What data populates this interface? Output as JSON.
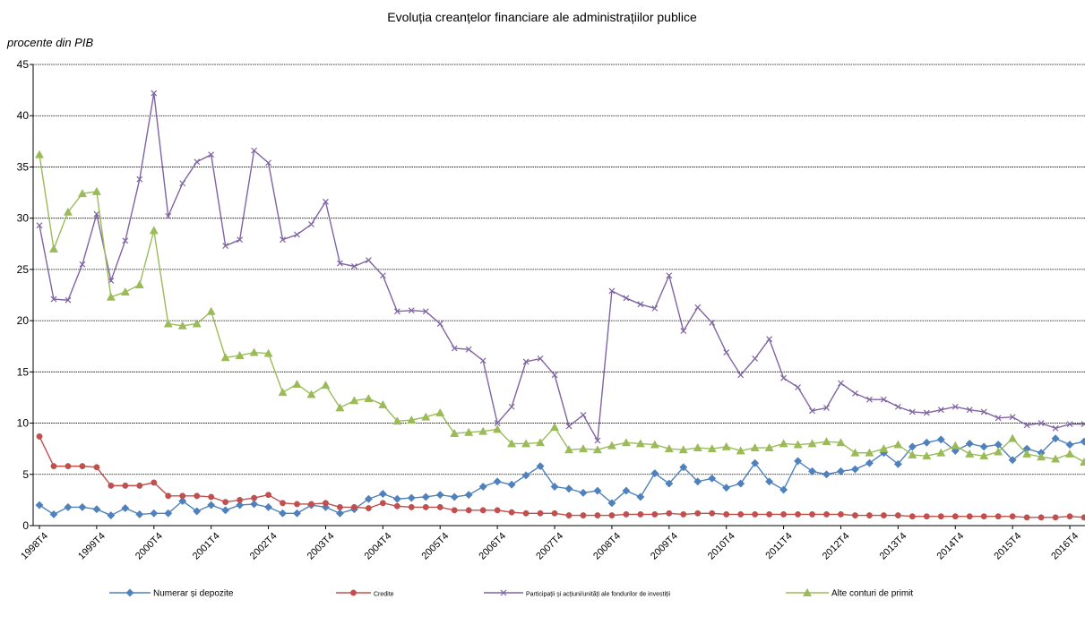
{
  "chart_data": {
    "type": "line",
    "title": "Evoluția creanțelor financiare ale administrațiilor publice",
    "ylabel": "procente din PIB",
    "xlabel": "",
    "ylim": [
      0,
      45
    ],
    "yticks": [
      0,
      5,
      10,
      15,
      20,
      25,
      30,
      35,
      40,
      45
    ],
    "grid": true,
    "legend_position": "bottom",
    "x_tick_labels": [
      "1998T4",
      "1999T4",
      "2000T4",
      "2001T4",
      "2002T4",
      "2003T4",
      "2004T4",
      "2005T4",
      "2006T4",
      "2007T4",
      "2008T4",
      "2009T4",
      "2010T4",
      "2011T4",
      "2012T4",
      "2013T4",
      "2014T4",
      "2015T4",
      "2016T4"
    ],
    "x_tick_label_index": [
      0,
      4,
      8,
      12,
      16,
      20,
      24,
      28,
      32,
      36,
      40,
      44,
      48,
      52,
      56,
      60,
      64,
      68,
      72
    ],
    "series": [
      {
        "name": "Numerar și depozite",
        "color": "#4f81bd",
        "marker": "diamond",
        "values": [
          2.0,
          1.1,
          1.8,
          1.8,
          1.6,
          1.0,
          1.7,
          1.1,
          1.2,
          1.2,
          2.4,
          1.4,
          2.0,
          1.5,
          2.0,
          2.1,
          1.8,
          1.2,
          1.2,
          2.0,
          1.8,
          1.2,
          1.6,
          2.6,
          3.1,
          2.6,
          2.7,
          2.8,
          3.0,
          2.8,
          3.0,
          3.8,
          4.3,
          4.0,
          4.9,
          5.8,
          3.8,
          3.6,
          3.2,
          3.4,
          2.2,
          3.4,
          2.8,
          5.1,
          4.1,
          5.7,
          4.3,
          4.6,
          3.7,
          4.1,
          6.1,
          4.3,
          3.5,
          6.3,
          5.3,
          5.0,
          5.3,
          5.5,
          6.1,
          7.1,
          6.0,
          7.7,
          8.1,
          8.4,
          7.3,
          8.0,
          7.7,
          7.9,
          6.4,
          7.5,
          7.1,
          8.5,
          7.9,
          8.2
        ]
      },
      {
        "name": "Credite",
        "color": "#c0504d",
        "marker": "circle",
        "values": [
          8.7,
          5.8,
          5.8,
          5.8,
          5.7,
          3.9,
          3.9,
          3.9,
          4.2,
          2.9,
          2.9,
          2.9,
          2.8,
          2.3,
          2.5,
          2.7,
          3.0,
          2.2,
          2.1,
          2.1,
          2.2,
          1.8,
          1.8,
          1.7,
          2.2,
          1.9,
          1.8,
          1.8,
          1.8,
          1.5,
          1.5,
          1.5,
          1.5,
          1.3,
          1.2,
          1.2,
          1.2,
          1.0,
          1.0,
          1.0,
          1.0,
          1.1,
          1.1,
          1.1,
          1.2,
          1.1,
          1.2,
          1.2,
          1.1,
          1.1,
          1.1,
          1.1,
          1.1,
          1.1,
          1.1,
          1.1,
          1.1,
          1.0,
          1.0,
          1.0,
          1.0,
          0.9,
          0.9,
          0.9,
          0.9,
          0.9,
          0.9,
          0.9,
          0.9,
          0.8,
          0.8,
          0.8,
          0.9,
          0.8
        ]
      },
      {
        "name": "Participații și acțiuni/unități ale fondurilor de investiții",
        "color": "#8064a2",
        "marker": "x",
        "values": [
          29.3,
          22.1,
          22.0,
          25.5,
          30.4,
          23.9,
          27.8,
          33.8,
          42.2,
          30.2,
          33.4,
          35.5,
          36.2,
          27.3,
          27.9,
          36.6,
          35.4,
          27.9,
          28.4,
          29.4,
          31.6,
          25.6,
          25.3,
          25.9,
          24.4,
          20.9,
          21.0,
          20.9,
          19.7,
          17.3,
          17.2,
          16.1,
          10.0,
          11.6,
          16.0,
          16.3,
          14.7,
          9.7,
          10.8,
          8.3,
          22.9,
          22.2,
          21.6,
          21.2,
          24.4,
          19.0,
          21.3,
          19.8,
          16.9,
          14.7,
          16.3,
          18.2,
          14.4,
          13.5,
          11.2,
          11.5,
          13.9,
          12.9,
          12.3,
          12.3,
          11.6,
          11.1,
          11.0,
          11.3,
          11.6,
          11.3,
          11.1,
          10.5,
          10.6,
          9.8,
          10.0,
          9.5,
          9.9,
          9.9
        ]
      },
      {
        "name": "Alte conturi de primit",
        "color": "#9bbb59",
        "marker": "triangle",
        "values": [
          36.2,
          27.0,
          30.6,
          32.4,
          32.6,
          22.3,
          22.8,
          23.5,
          28.8,
          19.7,
          19.5,
          19.7,
          20.9,
          16.4,
          16.6,
          16.9,
          16.8,
          13.0,
          13.8,
          12.8,
          13.7,
          11.5,
          12.2,
          12.4,
          11.8,
          10.2,
          10.3,
          10.6,
          11.0,
          9.0,
          9.1,
          9.2,
          9.4,
          8.0,
          8.0,
          8.1,
          9.6,
          7.4,
          7.5,
          7.4,
          7.8,
          8.1,
          8.0,
          7.9,
          7.5,
          7.4,
          7.6,
          7.5,
          7.7,
          7.3,
          7.6,
          7.6,
          8.0,
          7.9,
          8.0,
          8.2,
          8.1,
          7.1,
          7.1,
          7.5,
          7.9,
          6.9,
          6.8,
          7.1,
          7.8,
          7.0,
          6.8,
          7.2,
          8.5,
          7.0,
          6.7,
          6.5,
          7.0,
          6.2
        ]
      }
    ]
  }
}
